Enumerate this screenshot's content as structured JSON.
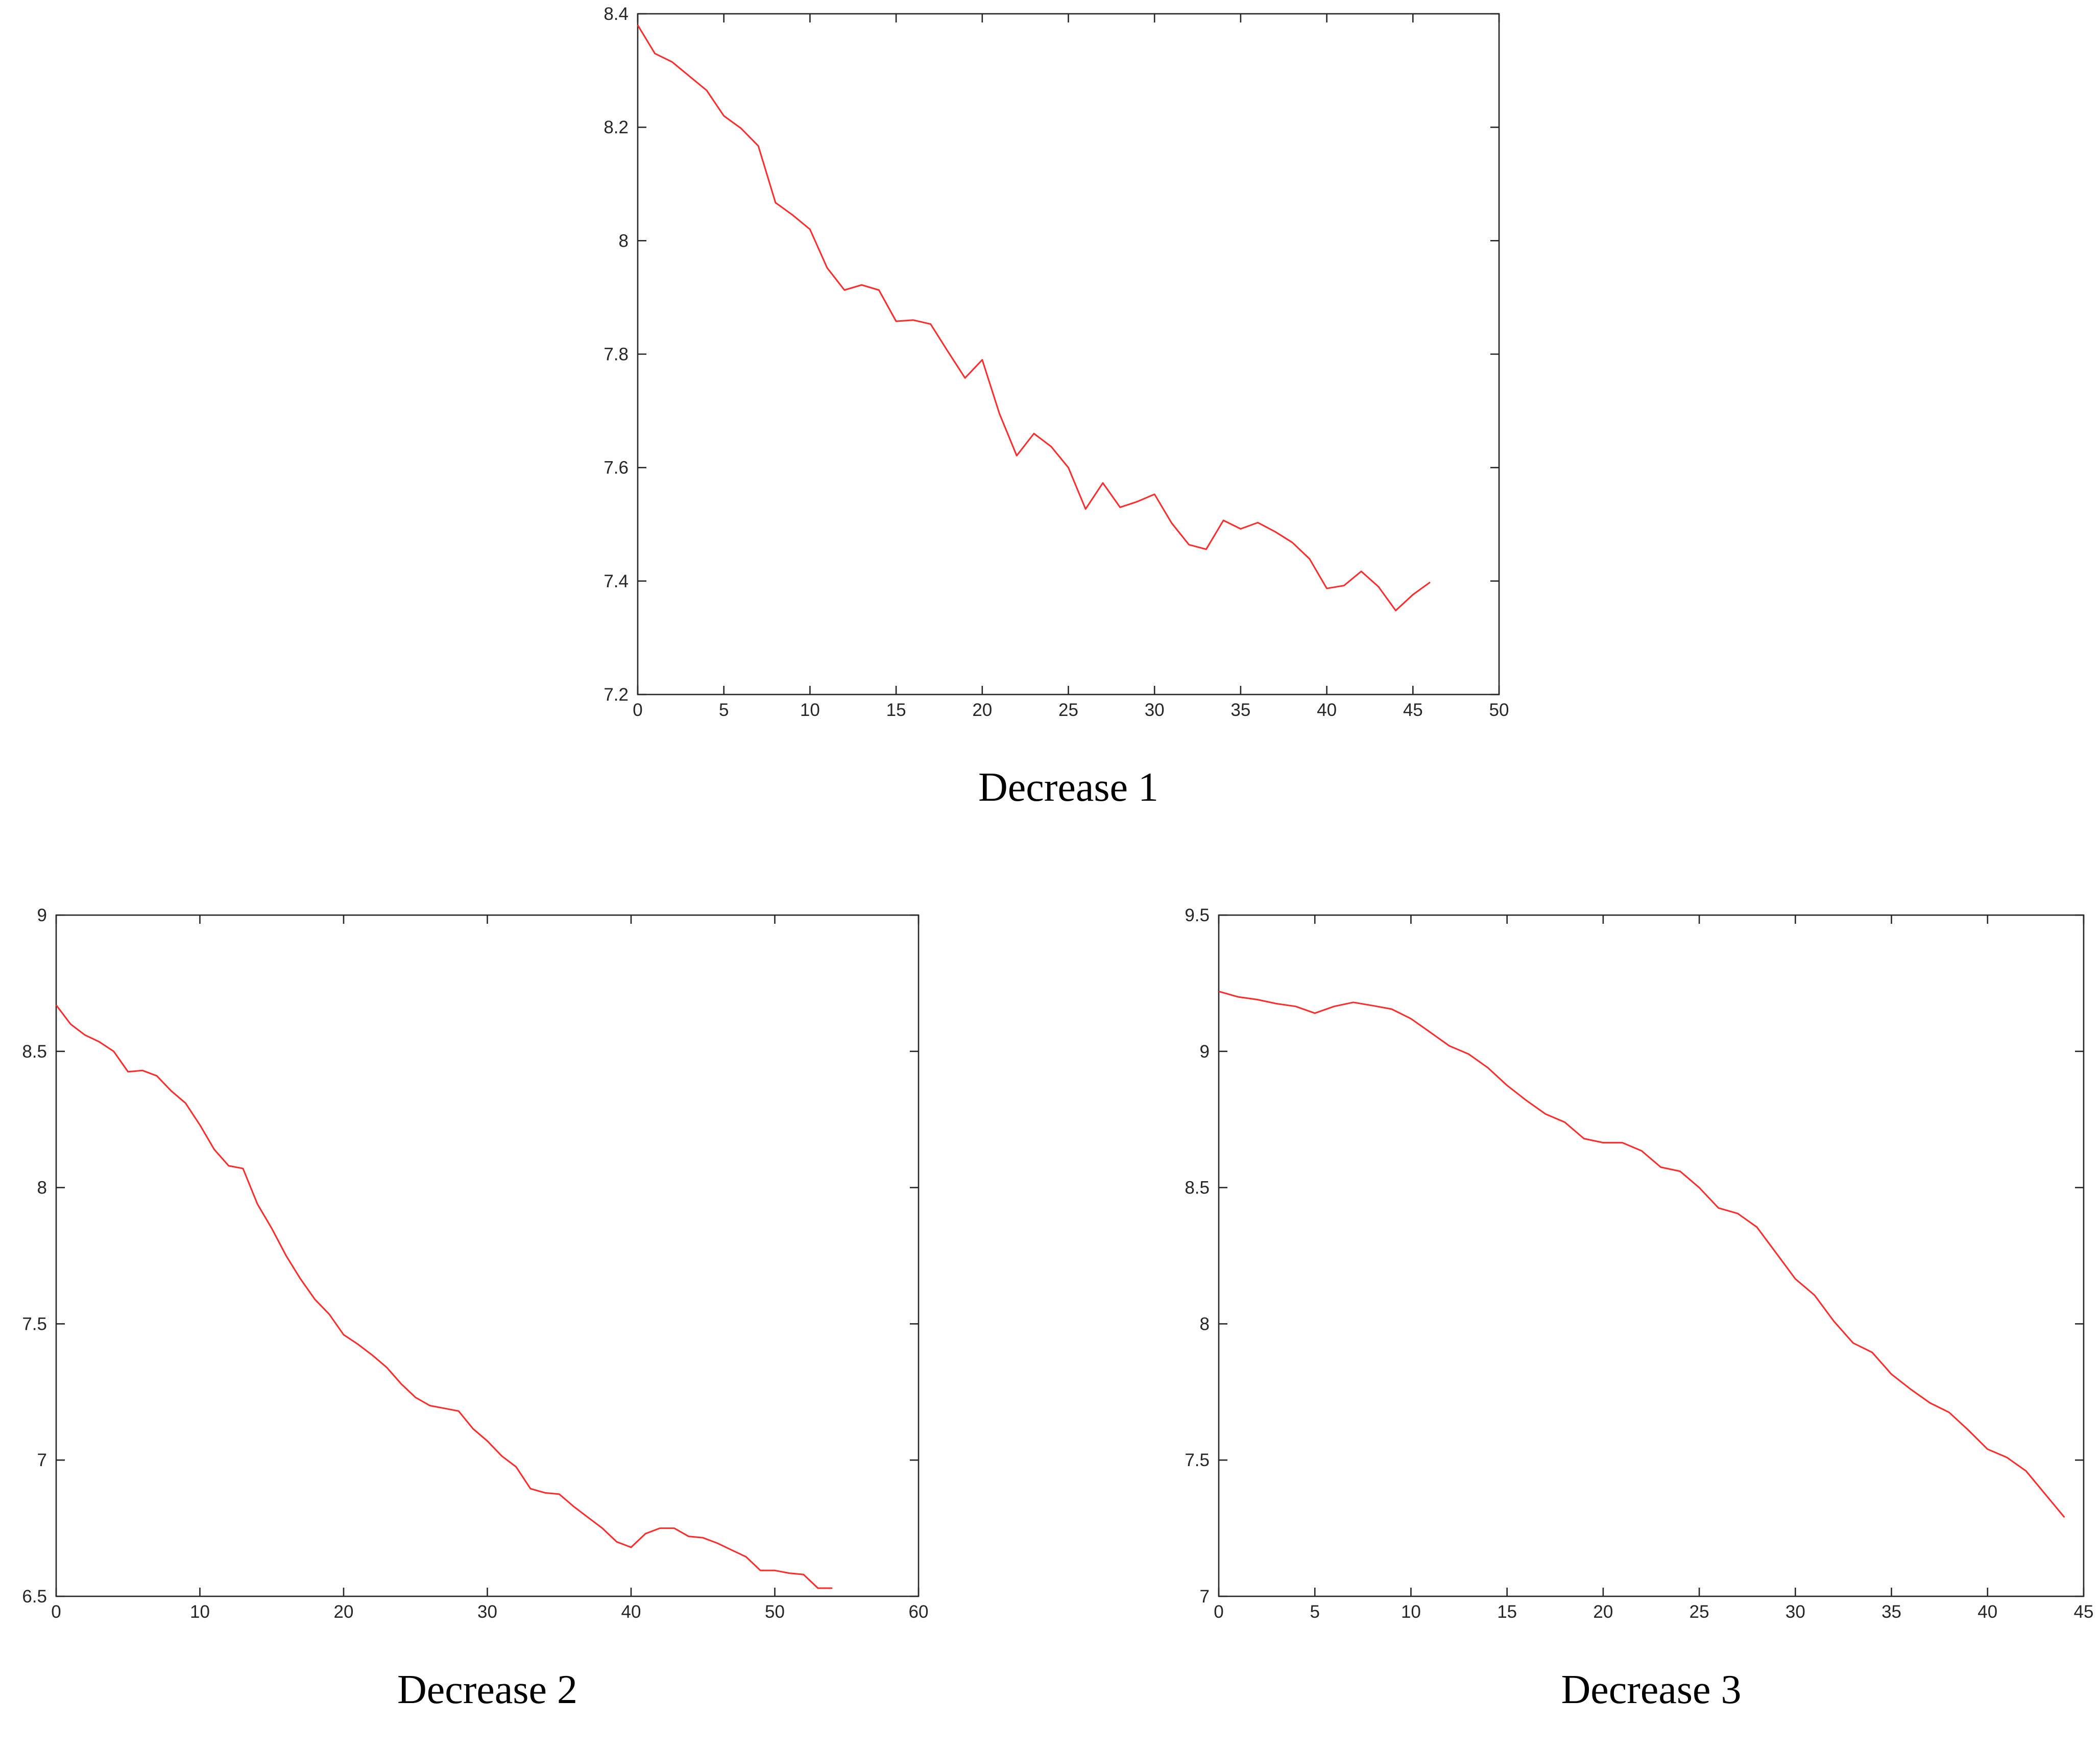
{
  "colors": {
    "line": "#ff2a2a",
    "axis": "#262626",
    "background": "#ffffff"
  },
  "chart_data": [
    {
      "type": "line",
      "caption": "Decrease 1",
      "xlim": [
        0,
        50
      ],
      "ylim": [
        7.2,
        8.4
      ],
      "xticks": [
        0,
        5,
        10,
        15,
        20,
        25,
        30,
        35,
        40,
        45,
        50
      ],
      "yticks": [
        7.2,
        7.4,
        7.6,
        7.8,
        8,
        8.2,
        8.4
      ],
      "xtick_labels": [
        "0",
        "5",
        "10",
        "15",
        "20",
        "25",
        "30",
        "35",
        "40",
        "45",
        "50"
      ],
      "ytick_labels": [
        "7.2",
        "7.4",
        "7.6",
        "7.8",
        "8",
        "8.2",
        "8.4"
      ],
      "series": [
        {
          "name": "Decrease 1",
          "x": [
            0,
            1,
            2,
            3,
            4,
            5,
            6,
            7,
            8,
            9,
            10,
            11,
            12,
            13,
            14,
            15,
            16,
            17,
            18,
            19,
            20,
            21,
            22,
            23,
            24,
            25,
            26,
            27,
            28,
            29,
            30,
            31,
            32,
            33,
            34,
            35,
            36,
            37,
            38,
            39,
            40,
            41,
            42,
            43,
            44,
            45,
            46
          ],
          "values": [
            8.38,
            8.33,
            8.315,
            8.29,
            8.265,
            8.22,
            8.198,
            8.167,
            8.067,
            8.045,
            8.02,
            7.952,
            7.913,
            7.922,
            7.913,
            7.858,
            7.86,
            7.853,
            7.805,
            7.758,
            7.79,
            7.695,
            7.621,
            7.66,
            7.637,
            7.6,
            7.527,
            7.573,
            7.53,
            7.54,
            7.553,
            7.502,
            7.464,
            7.456,
            7.507,
            7.492,
            7.503,
            7.487,
            7.468,
            7.439,
            7.387,
            7.392,
            7.417,
            7.39,
            7.348,
            7.376,
            7.398
          ]
        }
      ]
    },
    {
      "type": "line",
      "caption": "Decrease 2",
      "xlim": [
        0,
        60
      ],
      "ylim": [
        6.5,
        9
      ],
      "xticks": [
        0,
        10,
        20,
        30,
        40,
        50,
        60
      ],
      "yticks": [
        6.5,
        7,
        7.5,
        8,
        8.5,
        9
      ],
      "xtick_labels": [
        "0",
        "10",
        "20",
        "30",
        "40",
        "50",
        "60"
      ],
      "ytick_labels": [
        "6.5",
        "7",
        "7.5",
        "8",
        "8.5",
        "9"
      ],
      "series": [
        {
          "name": "Decrease 2",
          "x": [
            0,
            1,
            2,
            3,
            4,
            5,
            6,
            7,
            8,
            9,
            10,
            11,
            12,
            13,
            14,
            15,
            16,
            17,
            18,
            19,
            20,
            21,
            22,
            23,
            24,
            25,
            26,
            27,
            28,
            29,
            30,
            31,
            32,
            33,
            34,
            35,
            36,
            37,
            38,
            39,
            40,
            41,
            42,
            43,
            44,
            45,
            46,
            47,
            48,
            49,
            50,
            51,
            52,
            53,
            54
          ],
          "values": [
            8.67,
            8.6,
            8.56,
            8.535,
            8.5,
            8.425,
            8.43,
            8.41,
            8.355,
            8.31,
            8.23,
            8.14,
            8.08,
            8.07,
            7.94,
            7.85,
            7.75,
            7.665,
            7.59,
            7.535,
            7.46,
            7.425,
            7.385,
            7.34,
            7.28,
            7.23,
            7.2,
            7.19,
            7.18,
            7.115,
            7.07,
            7.015,
            6.975,
            6.895,
            6.88,
            6.875,
            6.83,
            6.79,
            6.75,
            6.7,
            6.68,
            6.73,
            6.75,
            6.75,
            6.72,
            6.715,
            6.695,
            6.67,
            6.645,
            6.595,
            6.595,
            6.585,
            6.58,
            6.53,
            6.53
          ]
        }
      ]
    },
    {
      "type": "line",
      "caption": "Decrease 3",
      "xlim": [
        0,
        45
      ],
      "ylim": [
        7,
        9.5
      ],
      "xticks": [
        0,
        5,
        10,
        15,
        20,
        25,
        30,
        35,
        40,
        45
      ],
      "yticks": [
        7,
        7.5,
        8,
        8.5,
        9,
        9.5
      ],
      "xtick_labels": [
        "0",
        "5",
        "10",
        "15",
        "20",
        "25",
        "30",
        "35",
        "40",
        "45"
      ],
      "ytick_labels": [
        "7",
        "7.5",
        "8",
        "8.5",
        "9",
        "9.5"
      ],
      "series": [
        {
          "name": "Decrease 3",
          "x": [
            0,
            1,
            2,
            3,
            4,
            5,
            6,
            7,
            8,
            9,
            10,
            11,
            12,
            13,
            14,
            15,
            16,
            17,
            18,
            19,
            20,
            21,
            22,
            23,
            24,
            25,
            26,
            27,
            28,
            29,
            30,
            31,
            32,
            33,
            34,
            35,
            36,
            37,
            38,
            39,
            40,
            41,
            42,
            43,
            44
          ],
          "values": [
            9.22,
            9.2,
            9.19,
            9.175,
            9.165,
            9.14,
            9.165,
            9.18,
            9.168,
            9.155,
            9.12,
            9.07,
            9.02,
            8.99,
            8.94,
            8.875,
            8.82,
            8.77,
            8.74,
            8.68,
            8.665,
            8.665,
            8.635,
            8.575,
            8.56,
            8.5,
            8.425,
            8.405,
            8.355,
            8.26,
            8.165,
            8.105,
            8.01,
            7.93,
            7.895,
            7.815,
            7.76,
            7.71,
            7.675,
            7.61,
            7.54,
            7.51,
            7.46,
            7.375,
            7.29
          ]
        }
      ]
    }
  ]
}
